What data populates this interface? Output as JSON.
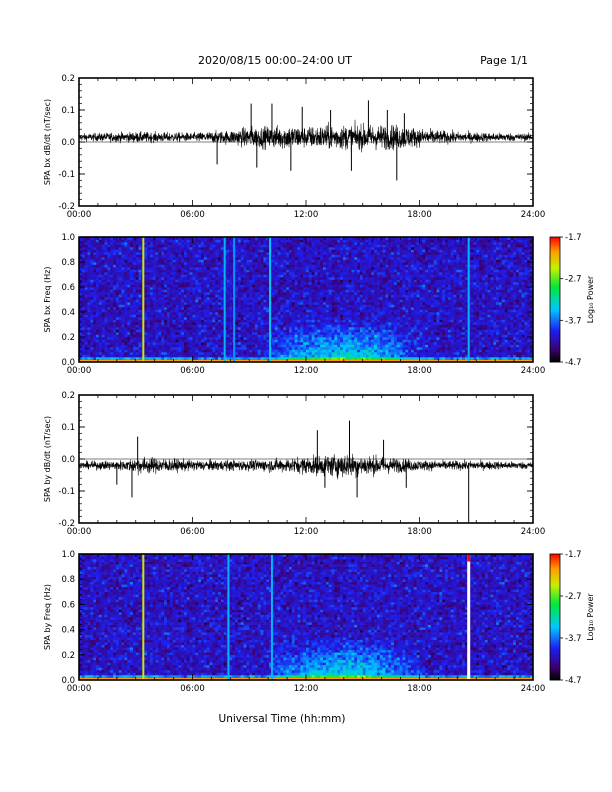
{
  "header": {
    "title": "2020/08/15  00:00–24:00 UT",
    "page": "Page 1/1"
  },
  "xlabel": "Universal Time (hh:mm)",
  "chart_data": [
    {
      "type": "line",
      "ylabel": "SPA bx dB/dt (nT/sec)",
      "xlim": [
        0,
        24
      ],
      "ylim": [
        -0.2,
        0.2
      ],
      "x_ticks": [
        "00:00",
        "06:00",
        "12:00",
        "18:00",
        "24:00"
      ],
      "y_ticks": [
        "0.2",
        "0.1",
        "0.0",
        "-0.1",
        "-0.2"
      ],
      "baseline": 0.015,
      "envelope": [
        [
          0.0,
          0.02
        ],
        [
          3.0,
          0.03
        ],
        [
          6.0,
          0.025
        ],
        [
          8.0,
          0.04
        ],
        [
          9.0,
          0.06
        ],
        [
          10.0,
          0.06
        ],
        [
          11.0,
          0.07
        ],
        [
          12.0,
          0.06
        ],
        [
          13.0,
          0.07
        ],
        [
          14.0,
          0.07
        ],
        [
          15.0,
          0.07
        ],
        [
          16.0,
          0.07
        ],
        [
          17.0,
          0.07
        ],
        [
          18.0,
          0.05
        ],
        [
          20.0,
          0.03
        ],
        [
          24.0,
          0.02
        ]
      ],
      "spikes": [
        [
          7.3,
          -0.07
        ],
        [
          9.1,
          0.12
        ],
        [
          9.4,
          -0.08
        ],
        [
          10.2,
          0.12
        ],
        [
          11.2,
          -0.09
        ],
        [
          11.8,
          0.11
        ],
        [
          13.3,
          0.1
        ],
        [
          14.4,
          -0.09
        ],
        [
          15.3,
          0.13
        ],
        [
          16.3,
          0.1
        ],
        [
          16.8,
          -0.12
        ],
        [
          17.2,
          0.09
        ]
      ]
    },
    {
      "type": "heatmap",
      "ylabel": "SPA bx Freq (Hz)",
      "xlim": [
        0,
        24
      ],
      "ylim": [
        0,
        1
      ],
      "x_ticks": [
        "00:00",
        "06:00",
        "12:00",
        "18:00",
        "24:00"
      ],
      "y_ticks": [
        "1.0",
        "0.8",
        "0.6",
        "0.4",
        "0.2",
        "0.0"
      ],
      "colorbar": {
        "label": "Log₁₀ Power",
        "ticks": [
          "-1.7",
          "-2.7",
          "-3.7",
          "-4.7"
        ],
        "range": [
          -4.7,
          -1.7
        ]
      },
      "vertical_lines": [
        [
          3.4,
          -2.4
        ],
        [
          7.7,
          -3.5
        ],
        [
          8.2,
          -3.6
        ],
        [
          10.1,
          -3.4
        ],
        [
          20.6,
          -3.5
        ]
      ],
      "enhanced_band": {
        "t_start": 9.5,
        "t_end": 18.5,
        "f_low": 0.0,
        "f_high": 0.35,
        "level": -3.1
      }
    },
    {
      "type": "line",
      "ylabel": "SPA by dB/dt (nT/sec)",
      "xlim": [
        0,
        24
      ],
      "ylim": [
        -0.2,
        0.2
      ],
      "x_ticks": [
        "00:00",
        "06:00",
        "12:00",
        "18:00",
        "24:00"
      ],
      "y_ticks": [
        "0.2",
        "0.1",
        "0.0",
        "-0.1",
        "-0.2"
      ],
      "baseline": -0.02,
      "envelope": [
        [
          0.0,
          0.02
        ],
        [
          2.5,
          0.03
        ],
        [
          3.2,
          0.05
        ],
        [
          6.0,
          0.03
        ],
        [
          9.0,
          0.03
        ],
        [
          11.0,
          0.04
        ],
        [
          12.0,
          0.05
        ],
        [
          13.0,
          0.06
        ],
        [
          14.0,
          0.07
        ],
        [
          15.0,
          0.06
        ],
        [
          16.0,
          0.05
        ],
        [
          17.0,
          0.04
        ],
        [
          18.0,
          0.03
        ],
        [
          24.0,
          0.02
        ]
      ],
      "spikes": [
        [
          2.0,
          -0.08
        ],
        [
          2.8,
          -0.12
        ],
        [
          3.1,
          0.07
        ],
        [
          12.6,
          0.09
        ],
        [
          13.0,
          -0.09
        ],
        [
          14.3,
          0.12
        ],
        [
          14.7,
          -0.12
        ],
        [
          16.1,
          0.06
        ],
        [
          17.3,
          -0.09
        ],
        [
          20.6,
          -0.2
        ]
      ]
    },
    {
      "type": "heatmap",
      "ylabel": "SPA by Freq (Hz)",
      "xlim": [
        0,
        24
      ],
      "ylim": [
        0,
        1
      ],
      "x_ticks": [
        "00:00",
        "06:00",
        "12:00",
        "18:00",
        "24:00"
      ],
      "y_ticks": [
        "1.0",
        "0.8",
        "0.6",
        "0.4",
        "0.2",
        "0.0"
      ],
      "colorbar": {
        "label": "Log₁₀ Power",
        "ticks": [
          "-1.7",
          "-2.7",
          "-3.7",
          "-4.7"
        ],
        "range": [
          -4.7,
          -1.7
        ]
      },
      "vertical_lines": [
        [
          3.4,
          -2.4
        ],
        [
          7.9,
          -3.5
        ],
        [
          10.2,
          -3.5
        ]
      ],
      "white_gap": {
        "t": 20.6,
        "red_above": 0.94
      },
      "enhanced_band": {
        "t_start": 9.5,
        "t_end": 18.5,
        "f_low": 0.0,
        "f_high": 0.35,
        "level": -3.1
      }
    }
  ]
}
